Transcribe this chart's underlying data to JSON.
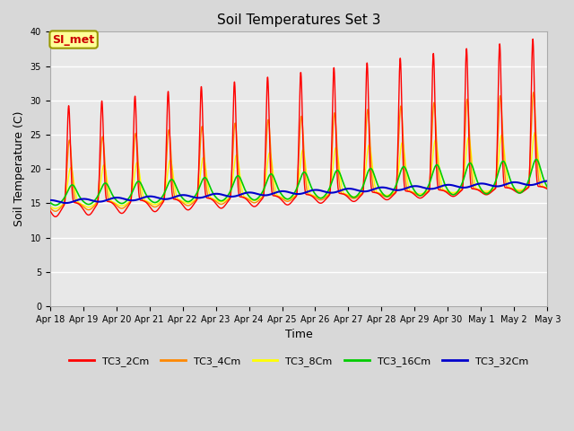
{
  "title": "Soil Temperatures Set 3",
  "xlabel": "Time",
  "ylabel": "Soil Temperature (C)",
  "ylim": [
    0,
    40
  ],
  "yticks": [
    0,
    5,
    10,
    15,
    20,
    25,
    30,
    35,
    40
  ],
  "background_color": "#d8d8d8",
  "plot_bg_color": "#e8e8e8",
  "annotation_text": "SI_met",
  "annotation_bg": "#ffff99",
  "annotation_border": "#999900",
  "annotation_text_color": "#cc0000",
  "series": {
    "TC3_2Cm": {
      "color": "#ff0000",
      "linewidth": 1.0
    },
    "TC3_4Cm": {
      "color": "#ff8800",
      "linewidth": 1.0
    },
    "TC3_8Cm": {
      "color": "#ffff00",
      "linewidth": 1.0
    },
    "TC3_16Cm": {
      "color": "#00cc00",
      "linewidth": 1.2
    },
    "TC3_32Cm": {
      "color": "#0000cc",
      "linewidth": 1.5
    }
  },
  "x_tick_labels": [
    "Apr 18",
    "Apr 19",
    "Apr 20",
    "Apr 21",
    "Apr 22",
    "Apr 23",
    "Apr 24",
    "Apr 25",
    "Apr 26",
    "Apr 27",
    "Apr 28",
    "Apr 29",
    "Apr 30",
    "May 1",
    "May 2",
    "May 3"
  ],
  "legend_ncol": 5
}
